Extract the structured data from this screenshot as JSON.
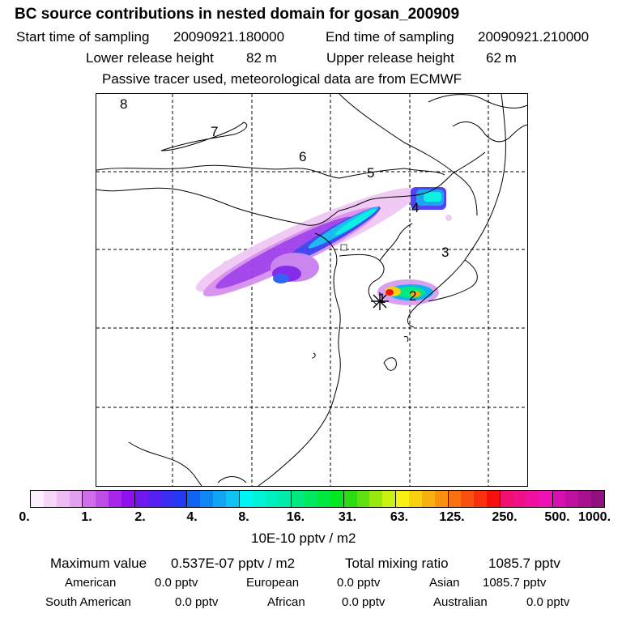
{
  "title": "BC  source contributions in nested domain for gosan_200909",
  "start_label": "Start time of sampling",
  "start_value": "20090921.180000",
  "end_label": "End time of sampling",
  "end_value": "20090921.210000",
  "lower_label": "Lower release height",
  "lower_value": "82 m",
  "upper_label": "Upper release height",
  "upper_value": "62 m",
  "tracer_note": "Passive tracer used, meteorological data are from ECMWF",
  "map": {
    "region_labels": [
      "1",
      "2",
      "3",
      "4",
      "5",
      "6",
      "7",
      "8"
    ],
    "receptor_marker": "star-icon"
  },
  "colorbar": {
    "ticks": [
      "0.",
      "1.",
      "2.",
      "4.",
      "8.",
      "16.",
      "31.",
      "63.",
      "125.",
      "250.",
      "500.",
      "1000."
    ],
    "unit": "10E-10 pptv / m2",
    "colors": [
      [
        "#fdf0fd",
        "#f6d6f8",
        "#eebcf4",
        "#e3a0ef"
      ],
      [
        "#cf6ee8",
        "#bd4ee8",
        "#a825ea",
        "#9010ee"
      ],
      [
        "#7018f0",
        "#5520f0",
        "#3b2cf2",
        "#2438f4"
      ],
      [
        "#0f64f2",
        "#0f86f2",
        "#10a6f2",
        "#10c4f2"
      ],
      [
        "#00f2f2",
        "#00f0d8",
        "#00eec0",
        "#00eca8"
      ],
      [
        "#00e880",
        "#00e860",
        "#00e840",
        "#00e820"
      ],
      [
        "#2cdc10",
        "#60e010",
        "#98e810",
        "#c8f010"
      ],
      [
        "#f8f010",
        "#f8d010",
        "#f8b010",
        "#f89010"
      ],
      [
        "#f87010",
        "#f85010",
        "#f83010",
        "#f81010"
      ],
      [
        "#f01070",
        "#f01088",
        "#f010a0",
        "#f010b8"
      ],
      [
        "#d810b0",
        "#c010a0",
        "#a81090",
        "#901080"
      ]
    ]
  },
  "summary": {
    "max_label": "Maximum value",
    "max_value": "0.537E-07 pptv / m2",
    "total_label": "Total mixing ratio",
    "total_value": "1085.7 pptv",
    "american_label": "American",
    "american_value": "0.0 pptv",
    "european_label": "European",
    "european_value": "0.0 pptv",
    "asian_label": "Asian",
    "asian_value": "1085.7 pptv",
    "south_american_label": "South American",
    "south_american_value": "0.0 pptv",
    "african_label": "African",
    "african_value": "0.0 pptv",
    "australian_label": "Australian",
    "australian_value": "0.0 pptv"
  }
}
